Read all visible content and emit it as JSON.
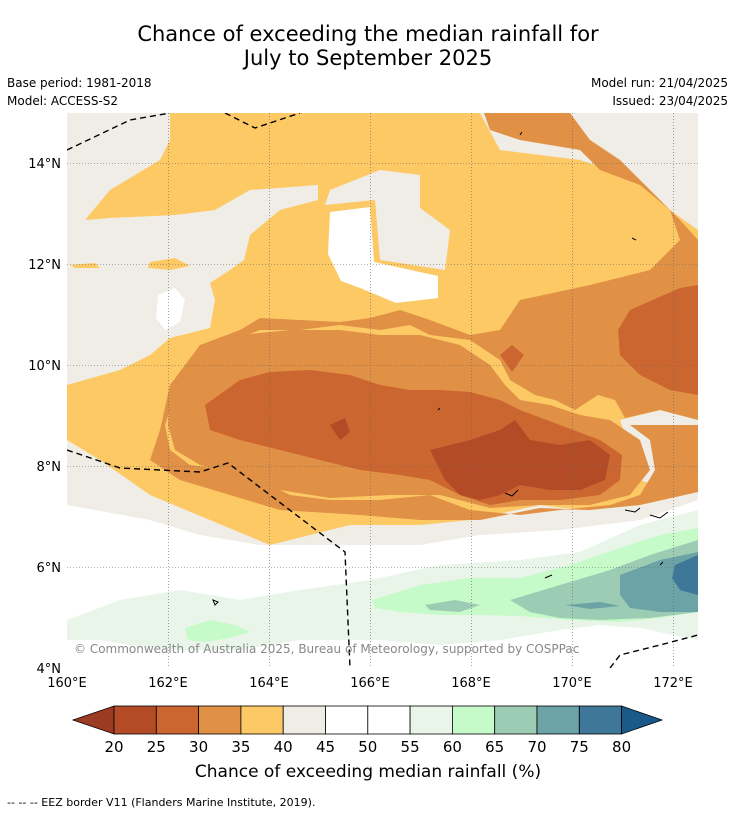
{
  "title_line1": "Chance of exceeding the median rainfall for",
  "title_line2": "July to September 2025",
  "meta_left": {
    "base_period": "Base period: 1981-2018",
    "model": "Model: ACCESS-S2"
  },
  "meta_right": {
    "model_run": "Model run: 21/04/2025",
    "issued": "Issued: 23/04/2025"
  },
  "map": {
    "lon_ticks": [
      "160°E",
      "162°E",
      "164°E",
      "166°E",
      "168°E",
      "170°E",
      "172°E"
    ],
    "lat_ticks": [
      "14°N",
      "12°N",
      "10°N",
      "8°N",
      "6°N",
      "4°N"
    ],
    "lon_range": [
      160,
      172.5
    ],
    "lat_range": [
      4,
      15
    ],
    "copyright": "© Commonwealth of Australia 2025, Bureau of Meteorology, supported by COSPPac",
    "colors": {
      "20": "#b34b27",
      "25": "#cc6630",
      "30": "#e09145",
      "35": "#fdc965",
      "40": "#f0ece6",
      "45": "#ffffff",
      "55": "#eaf5ea",
      "60": "#c6fac8",
      "65": "#9ccdb4",
      "70": "#6ca3a6",
      "75": "#3f7799"
    }
  },
  "colorbar": {
    "tick_labels": [
      "20",
      "25",
      "30",
      "35",
      "40",
      "45",
      "50",
      "55",
      "60",
      "65",
      "70",
      "75",
      "80"
    ],
    "colors": [
      "#9c3a22",
      "#b34b27",
      "#cc6630",
      "#e09145",
      "#fdc965",
      "#f0ece6",
      "#ffffff",
      "#ffffff",
      "#eaf5ea",
      "#c6fac8",
      "#9ccdb4",
      "#6ca3a6",
      "#3f7799",
      "#1a5a8a"
    ],
    "label": "Chance of exceeding median rainfall (%)"
  },
  "footer": "--  --  -- EEZ border V11 (Flanders Marine Institute, 2019)."
}
